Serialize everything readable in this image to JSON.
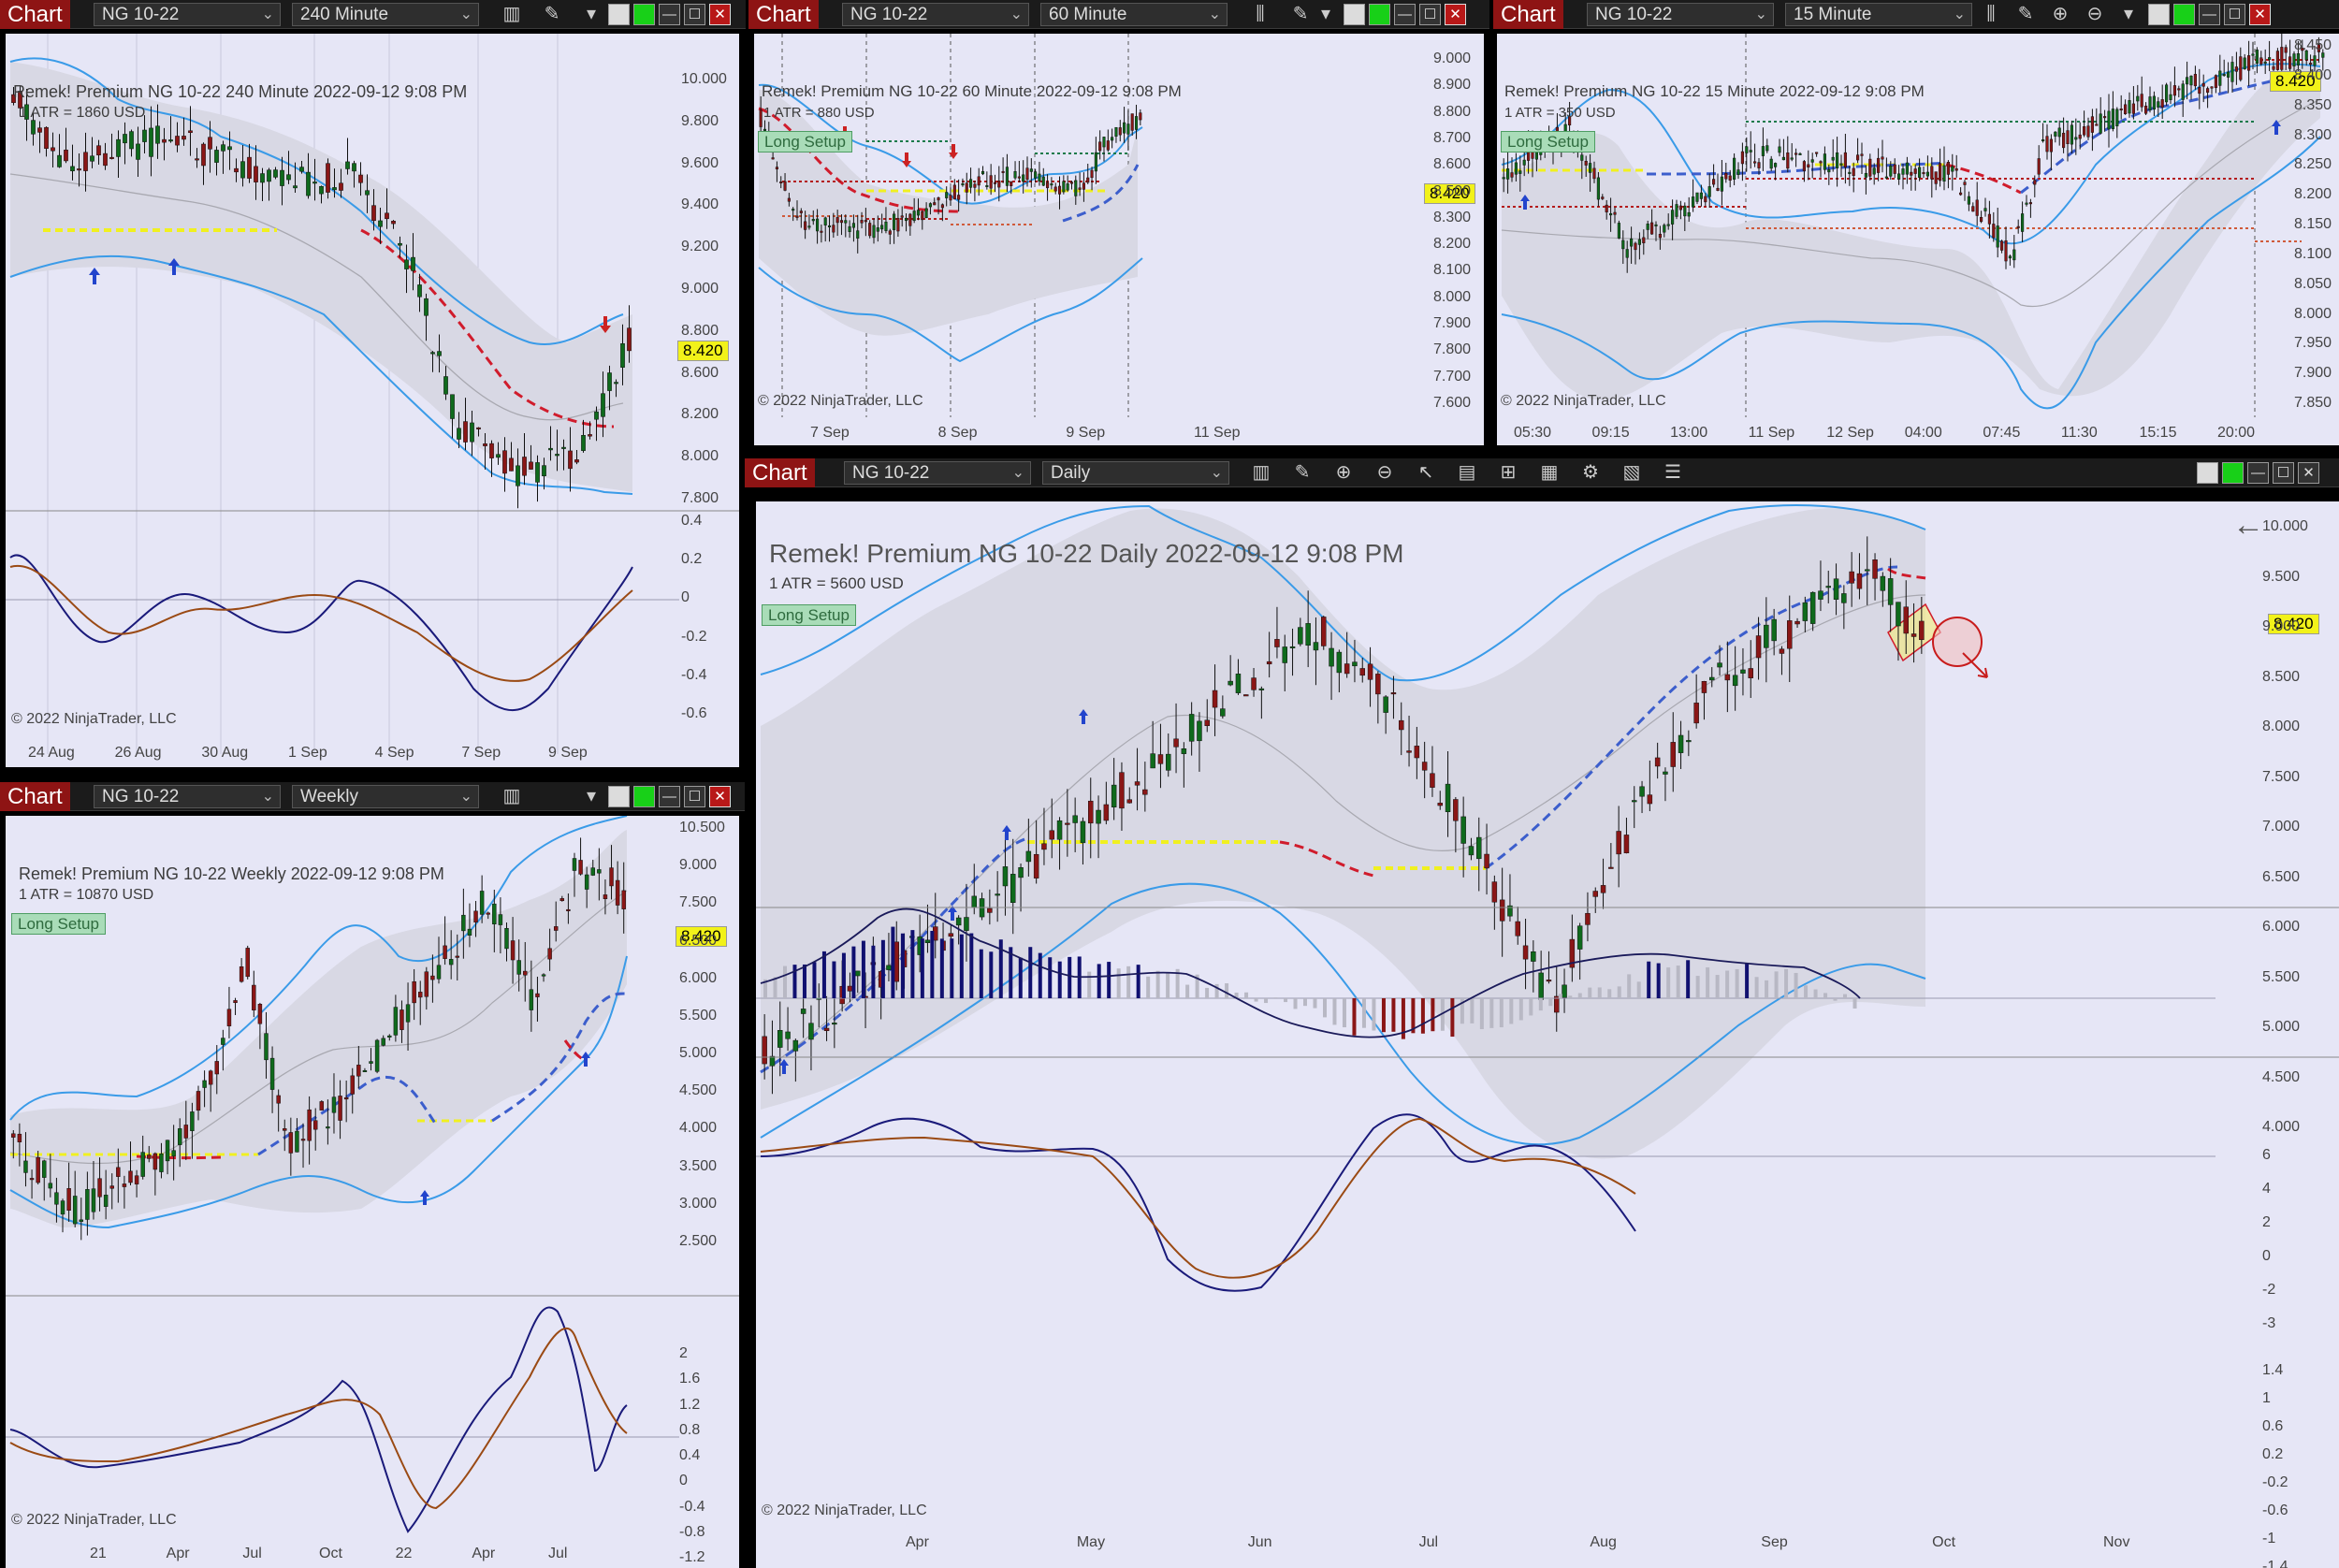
{
  "windows": [
    {
      "id": "w240",
      "tab": "Chart",
      "instrument": "NG 10-22",
      "period": "240 Minute",
      "title": "Remek!  Premium  NG 10-22  240 Minute  2022-09-12 9:08 PM",
      "atr": "1 ATR = 1860 USD",
      "price": "8.420",
      "yticks": [
        "10.000",
        "9.800",
        "9.600",
        "9.400",
        "9.200",
        "9.000",
        "8.800",
        "8.600",
        "8.200",
        "8.000",
        "7.800"
      ],
      "ind_ticks": [
        "0.4",
        "0.2",
        "0",
        "-0.2",
        "-0.4",
        "-0.6"
      ],
      "xticks": [
        "24 Aug",
        "26 Aug",
        "30 Aug",
        "1 Sep",
        "4 Sep",
        "7 Sep",
        "9 Sep"
      ],
      "copyright": "© 2022 NinjaTrader, LLC"
    },
    {
      "id": "w60",
      "tab": "Chart",
      "instrument": "NG 10-22",
      "period": "60 Minute",
      "title": "Remek!  Premium  NG 10-22  60 Minute  2022-09-12 9:08 PM",
      "atr": "1 ATR = 880 USD",
      "badge": "Long Setup",
      "price": "8.420",
      "yticks": [
        "9.000",
        "8.900",
        "8.800",
        "8.700",
        "8.600",
        "8.500",
        "8.300",
        "8.200",
        "8.100",
        "8.000",
        "7.900",
        "7.800",
        "7.700",
        "7.600"
      ],
      "xticks": [
        "7 Sep",
        "8 Sep",
        "9 Sep",
        "11 Sep"
      ],
      "copyright": "© 2022 NinjaTrader, LLC"
    },
    {
      "id": "w15",
      "tab": "Chart",
      "instrument": "NG 10-22",
      "period": "15 Minute",
      "title": "Remek!  Premium  NG 10-22  15 Minute  2022-09-12 9:08 PM",
      "atr": "1 ATR = 350 USD",
      "badge": "Long Setup",
      "price": "8.420",
      "yticks": [
        "8.450",
        "8.400",
        "8.350",
        "8.300",
        "8.250",
        "8.200",
        "8.150",
        "8.100",
        "8.050",
        "8.000",
        "7.950",
        "7.900",
        "7.850"
      ],
      "xticks": [
        "05:30",
        "09:15",
        "13:00",
        "11 Sep",
        "12 Sep",
        "04:00",
        "07:45",
        "11:30",
        "15:15",
        "20:00"
      ],
      "copyright": "© 2022 NinjaTrader, LLC"
    },
    {
      "id": "wW",
      "tab": "Chart",
      "instrument": "NG 10-22",
      "period": "Weekly",
      "title": "Remek!  Premium  NG 10-22  Weekly  2022-09-12 9:08 PM",
      "atr": "1 ATR = 10870 USD",
      "badge": "Long Setup",
      "price": "8.420",
      "yticks": [
        "10.500",
        "9.000",
        "7.500",
        "6.500",
        "6.000",
        "5.500",
        "5.000",
        "4.500",
        "4.000",
        "3.500",
        "3.000",
        "2.500"
      ],
      "ind_ticks": [
        "2",
        "1.6",
        "1.2",
        "0.8",
        "0.4",
        "0",
        "-0.4",
        "-0.8",
        "-1.2"
      ],
      "xticks": [
        "21",
        "Apr",
        "Jul",
        "Oct",
        "22",
        "Apr",
        "Jul"
      ],
      "copyright": "© 2022 NinjaTrader, LLC"
    },
    {
      "id": "wD",
      "tab": "Chart",
      "instrument": "NG 10-22",
      "period": "Daily",
      "title": "Remek!  Premium  NG 10-22  Daily  2022-09-12 9:08 PM",
      "atr": "1 ATR = 5600 USD",
      "badge": "Long Setup",
      "price": "8.420",
      "yticks": [
        "10.000",
        "9.500",
        "9.000",
        "8.500",
        "8.000",
        "7.500",
        "7.000",
        "6.500",
        "6.000",
        "5.500",
        "5.000",
        "4.500",
        "4.000"
      ],
      "hist_ticks": [
        "6",
        "4",
        "2",
        "0",
        "-2",
        "-3"
      ],
      "ind_ticks": [
        "1.4",
        "1",
        "0.6",
        "0.2",
        "-0.2",
        "-0.6",
        "-1",
        "-1.4"
      ],
      "xticks": [
        "Apr",
        "May",
        "Jun",
        "Jul",
        "Aug",
        "Sep",
        "Oct",
        "Nov"
      ],
      "copyright": "© 2022 NinjaTrader, LLC"
    }
  ],
  "icons": [
    "bar-type-icon",
    "draw-tools-icon",
    "zoom-in-icon",
    "zoom-out-icon",
    "pointer-icon",
    "data-box-icon",
    "indicators-icon",
    "strategies-icon",
    "properties-icon",
    "templates-icon",
    "back-arrow-icon"
  ],
  "colors": {
    "background": "#e6e6f6",
    "band": "#3a9be8",
    "up_candle": "#0f6a1c",
    "down_candle": "#8a1616",
    "signal_red": "#d01c2c",
    "signal_blue": "#3c5ecc",
    "level_yellow": "#f0f020",
    "tab": "#8e1414",
    "price_marker": "#f2f21a"
  }
}
